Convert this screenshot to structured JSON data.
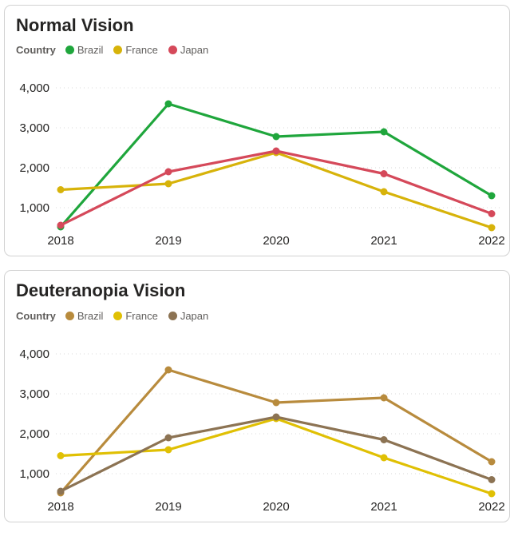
{
  "chart_data": [
    {
      "type": "line",
      "title": "Normal Vision",
      "legend_title": "Country",
      "legend_position": "top-left",
      "x": [
        "2018",
        "2019",
        "2020",
        "2021",
        "2022"
      ],
      "y_ticks": [
        1000,
        2000,
        3000,
        4000
      ],
      "y_tick_labels": [
        "1,000",
        "2,000",
        "3,000",
        "4,000"
      ],
      "ylim": [
        300,
        4200
      ],
      "grid": "horizontal-dotted",
      "series": [
        {
          "name": "Brazil",
          "color": "#1FA63C",
          "values": [
            520,
            3600,
            2780,
            2900,
            1300
          ]
        },
        {
          "name": "France",
          "color": "#D7B30A",
          "values": [
            1450,
            1600,
            2380,
            1400,
            500
          ]
        },
        {
          "name": "Japan",
          "color": "#D5495A",
          "values": [
            560,
            1900,
            2420,
            1850,
            850
          ]
        }
      ]
    },
    {
      "type": "line",
      "title": "Deuteranopia Vision",
      "legend_title": "Country",
      "legend_position": "top-left",
      "x": [
        "2018",
        "2019",
        "2020",
        "2021",
        "2022"
      ],
      "y_ticks": [
        1000,
        2000,
        3000,
        4000
      ],
      "y_tick_labels": [
        "1,000",
        "2,000",
        "3,000",
        "4,000"
      ],
      "ylim": [
        300,
        4200
      ],
      "grid": "horizontal-dotted",
      "series": [
        {
          "name": "Brazil",
          "color": "#B88B3D",
          "values": [
            520,
            3600,
            2780,
            2900,
            1300
          ]
        },
        {
          "name": "France",
          "color": "#E0C004",
          "values": [
            1450,
            1600,
            2380,
            1400,
            500
          ]
        },
        {
          "name": "Japan",
          "color": "#8C7353",
          "values": [
            560,
            1900,
            2420,
            1850,
            850
          ]
        }
      ]
    }
  ],
  "styles": {
    "title_color": "#252423",
    "legend_text_color": "#605E5C",
    "axis_label_color": "#252423",
    "gridline_color": "#D9D9D9",
    "card_border_color": "#D2D2D2"
  }
}
